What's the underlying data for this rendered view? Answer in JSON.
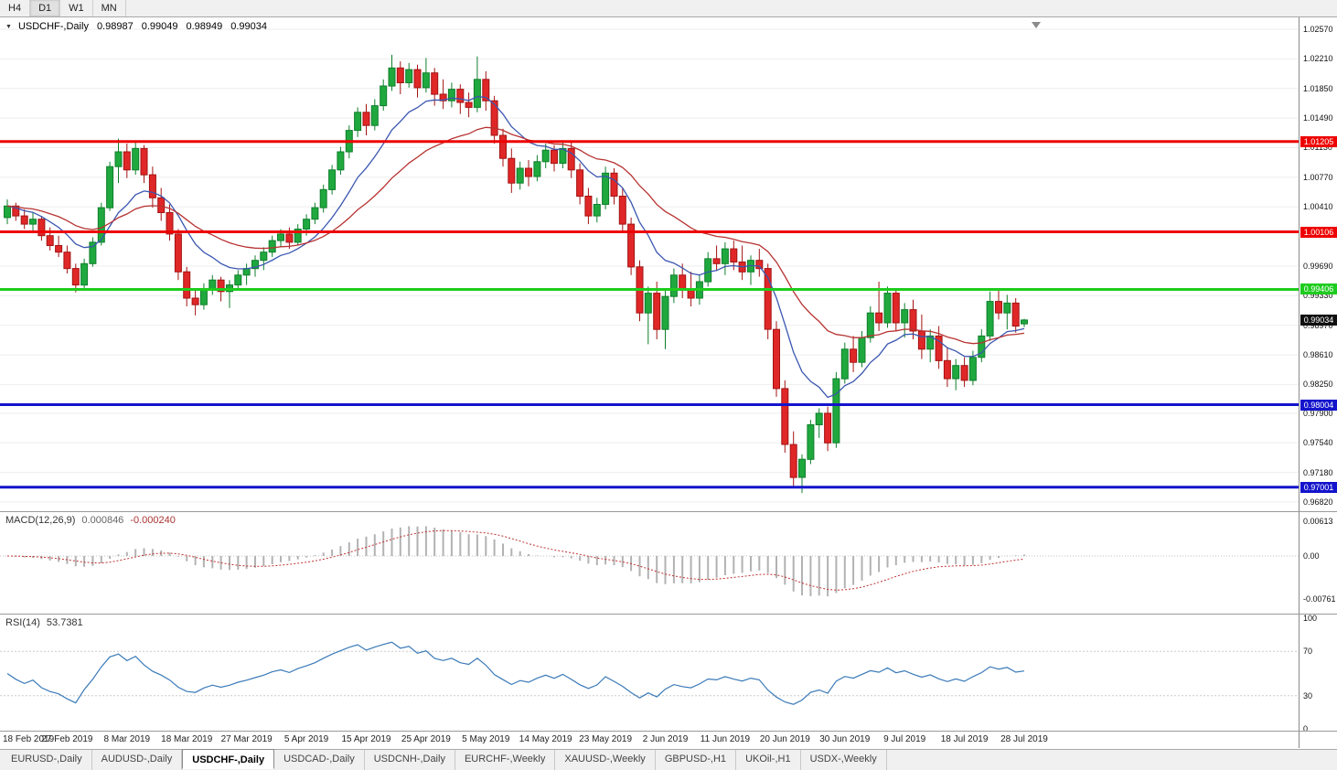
{
  "toolbar": {
    "timeframes": [
      {
        "label": "H4",
        "active": false
      },
      {
        "label": "D1",
        "active": true
      },
      {
        "label": "W1",
        "active": false
      },
      {
        "label": "MN",
        "active": false
      }
    ]
  },
  "chart": {
    "symbol_label": "USDCHF-,Daily",
    "ohlc": [
      "0.98987",
      "0.99049",
      "0.98949",
      "0.99034"
    ],
    "price_axis": {
      "ticks": [
        {
          "label": "1.02570",
          "value": 1.0257
        },
        {
          "label": "1.02210",
          "value": 1.0221
        },
        {
          "label": "1.01850",
          "value": 1.0185
        },
        {
          "label": "1.01490",
          "value": 1.0149
        },
        {
          "label": "1.01130",
          "value": 1.0113
        },
        {
          "label": "1.00770",
          "value": 1.0077
        },
        {
          "label": "1.00410",
          "value": 1.0041
        },
        {
          "label": "0.99690",
          "value": 0.9969
        },
        {
          "label": "0.99330",
          "value": 0.9933
        },
        {
          "label": "0.98970",
          "value": 0.9897
        },
        {
          "label": "0.98610",
          "value": 0.9861
        },
        {
          "label": "0.98250",
          "value": 0.9825
        },
        {
          "label": "0.97900",
          "value": 0.979
        },
        {
          "label": "0.97540",
          "value": 0.9754
        },
        {
          "label": "0.97180",
          "value": 0.9718
        },
        {
          "label": "0.96820",
          "value": 0.9682
        }
      ]
    },
    "hlines": [
      {
        "label": "1.01205",
        "value": 1.01205,
        "color": "#ee0000",
        "name": "resistance-line-1"
      },
      {
        "label": "1.00106",
        "value": 1.00106,
        "color": "#ee0000",
        "name": "resistance-line-2"
      },
      {
        "label": "0.99406",
        "value": 0.99406,
        "color": "#1ecc1e",
        "name": "pivot-line-green"
      },
      {
        "label": "0.98004",
        "value": 0.98004,
        "color": "#1414cc",
        "name": "support-line-1"
      },
      {
        "label": "0.97001",
        "value": 0.97001,
        "color": "#1414cc",
        "name": "support-line-2"
      }
    ],
    "current_price": {
      "label": "0.99034",
      "value": 0.99034,
      "color": "#101010"
    },
    "colors": {
      "up": "#1fa83e",
      "up_border": "#0f7f2b",
      "down": "#e02727",
      "down_border": "#a31313",
      "ma_fast": "#3a56b0",
      "ma_slow": "#b83232",
      "macd_hist": "#b2b2b2",
      "macd_signal": "#c03232",
      "rsi": "#3a7ab8",
      "grid": "#eeeeee"
    },
    "chart_data": {
      "type": "candlestick",
      "ylim": [
        0.9682,
        1.0257
      ],
      "candles": [
        [
          1.0028,
          1.005,
          1.002,
          1.0042
        ],
        [
          1.0042,
          1.0046,
          1.0024,
          1.003
        ],
        [
          1.003,
          1.0038,
          1.0014,
          1.002
        ],
        [
          1.002,
          1.0034,
          1.0012,
          1.0026
        ],
        [
          1.0026,
          1.003,
          1.0,
          1.0006
        ],
        [
          1.0006,
          1.0016,
          0.9988,
          0.9994
        ],
        [
          0.9994,
          1.0006,
          0.998,
          0.9986
        ],
        [
          0.9986,
          0.9994,
          0.996,
          0.9966
        ],
        [
          0.9966,
          0.9972,
          0.9937,
          0.9946
        ],
        [
          0.9946,
          0.9978,
          0.994,
          0.9972
        ],
        [
          0.9972,
          1.0004,
          0.9968,
          0.9998
        ],
        [
          0.9998,
          1.0046,
          0.9994,
          1.004
        ],
        [
          1.004,
          1.0096,
          1.0036,
          1.009
        ],
        [
          1.009,
          1.0124,
          1.007,
          1.0108
        ],
        [
          1.0108,
          1.0118,
          1.0076,
          1.0086
        ],
        [
          1.0086,
          1.0122,
          1.008,
          1.0112
        ],
        [
          1.0112,
          1.0116,
          1.007,
          1.008
        ],
        [
          1.008,
          1.009,
          1.004,
          1.0052
        ],
        [
          1.0052,
          1.0064,
          1.0024,
          1.0034
        ],
        [
          1.0034,
          1.0044,
          1.0,
          1.0008
        ],
        [
          1.0008,
          1.0014,
          0.9952,
          0.9962
        ],
        [
          0.9962,
          0.9968,
          0.992,
          0.993
        ],
        [
          0.993,
          0.9942,
          0.9909,
          0.9922
        ],
        [
          0.9922,
          0.9948,
          0.9916,
          0.994
        ],
        [
          0.994,
          0.9958,
          0.9934,
          0.9952
        ],
        [
          0.9952,
          0.9956,
          0.9926,
          0.9938
        ],
        [
          0.9938,
          0.9952,
          0.9918,
          0.9946
        ],
        [
          0.9946,
          0.9964,
          0.994,
          0.9958
        ],
        [
          0.9958,
          0.9972,
          0.9946,
          0.9966
        ],
        [
          0.9966,
          0.9982,
          0.9956,
          0.9976
        ],
        [
          0.9976,
          0.9992,
          0.9964,
          0.9986
        ],
        [
          0.9986,
          1.0006,
          0.998,
          1.0
        ],
        [
          1.0,
          1.0014,
          0.9992,
          1.0008
        ],
        [
          1.0008,
          1.0016,
          0.999,
          0.9998
        ],
        [
          0.9998,
          1.002,
          0.9994,
          1.0014
        ],
        [
          1.0014,
          1.0032,
          1.0006,
          1.0026
        ],
        [
          1.0026,
          1.0046,
          1.002,
          1.004
        ],
        [
          1.004,
          1.0068,
          1.0034,
          1.0062
        ],
        [
          1.0062,
          1.0092,
          1.0056,
          1.0086
        ],
        [
          1.0086,
          1.0114,
          1.008,
          1.0108
        ],
        [
          1.0108,
          1.014,
          1.01,
          1.0134
        ],
        [
          1.0134,
          1.0162,
          1.0126,
          1.0156
        ],
        [
          1.0156,
          1.0166,
          1.0128,
          1.014
        ],
        [
          1.014,
          1.0172,
          1.0134,
          1.0164
        ],
        [
          1.0164,
          1.0196,
          1.0158,
          1.0188
        ],
        [
          1.0188,
          1.0226,
          1.0182,
          1.021
        ],
        [
          1.021,
          1.0218,
          1.0178,
          1.0192
        ],
        [
          1.0192,
          1.0216,
          1.0186,
          1.0208
        ],
        [
          1.0208,
          1.0214,
          1.0174,
          1.0186
        ],
        [
          1.0186,
          1.0222,
          1.018,
          1.0204
        ],
        [
          1.0204,
          1.021,
          1.0164,
          1.0178
        ],
        [
          1.0178,
          1.0196,
          1.016,
          1.017
        ],
        [
          1.017,
          1.0192,
          1.0162,
          1.0184
        ],
        [
          1.0184,
          1.019,
          1.0154,
          1.0168
        ],
        [
          1.0168,
          1.018,
          1.015,
          1.0162
        ],
        [
          1.0162,
          1.0224,
          1.0156,
          1.0196
        ],
        [
          1.0196,
          1.0206,
          1.0158,
          1.017
        ],
        [
          1.017,
          1.0176,
          1.0118,
          1.0128
        ],
        [
          1.0128,
          1.0136,
          1.009,
          1.01
        ],
        [
          1.01,
          1.0112,
          1.0058,
          1.007
        ],
        [
          1.007,
          1.0096,
          1.0062,
          1.0088
        ],
        [
          1.0088,
          1.0098,
          1.0066,
          1.0078
        ],
        [
          1.0078,
          1.0104,
          1.0072,
          1.0096
        ],
        [
          1.0096,
          1.0118,
          1.0088,
          1.011
        ],
        [
          1.011,
          1.0116,
          1.0084,
          1.0094
        ],
        [
          1.0094,
          1.0122,
          1.0088,
          1.0112
        ],
        [
          1.0112,
          1.012,
          1.0076,
          1.0086
        ],
        [
          1.0086,
          1.0094,
          1.0044,
          1.0054
        ],
        [
          1.0054,
          1.0064,
          1.002,
          1.003
        ],
        [
          1.003,
          1.0052,
          1.0022,
          1.0044
        ],
        [
          1.0044,
          1.009,
          1.0038,
          1.0082
        ],
        [
          1.0082,
          1.0088,
          1.0044,
          1.0054
        ],
        [
          1.0054,
          1.0064,
          1.001,
          1.002
        ],
        [
          1.002,
          1.0028,
          0.9958,
          0.9968
        ],
        [
          0.9968,
          0.9976,
          0.9902,
          0.9912
        ],
        [
          0.9912,
          0.9944,
          0.9874,
          0.9936
        ],
        [
          0.9936,
          0.995,
          0.988,
          0.9892
        ],
        [
          0.9892,
          0.9942,
          0.9868,
          0.9932
        ],
        [
          0.9932,
          0.9966,
          0.9924,
          0.9958
        ],
        [
          0.9958,
          0.9972,
          0.993,
          0.994
        ],
        [
          0.994,
          0.9962,
          0.992,
          0.993
        ],
        [
          0.993,
          0.9958,
          0.9922,
          0.995
        ],
        [
          0.995,
          0.9986,
          0.9944,
          0.9978
        ],
        [
          0.9978,
          0.9994,
          0.9964,
          0.9972
        ],
        [
          0.9972,
          0.9998,
          0.9958,
          0.999
        ],
        [
          0.999,
          1.0,
          0.9964,
          0.9974
        ],
        [
          0.9974,
          0.9994,
          0.9952,
          0.9962
        ],
        [
          0.9962,
          0.9982,
          0.9946,
          0.9976
        ],
        [
          0.9976,
          0.999,
          0.9956,
          0.9966
        ],
        [
          0.9966,
          0.9972,
          0.988,
          0.9892
        ],
        [
          0.9892,
          0.9902,
          0.981,
          0.982
        ],
        [
          0.982,
          0.983,
          0.9742,
          0.9752
        ],
        [
          0.9752,
          0.9768,
          0.97,
          0.9712
        ],
        [
          0.9712,
          0.974,
          0.9693,
          0.9734
        ],
        [
          0.9734,
          0.9782,
          0.9728,
          0.9776
        ],
        [
          0.9776,
          0.9796,
          0.976,
          0.979
        ],
        [
          0.979,
          0.9798,
          0.9744,
          0.9754
        ],
        [
          0.9754,
          0.984,
          0.9748,
          0.9832
        ],
        [
          0.9832,
          0.9876,
          0.9826,
          0.9868
        ],
        [
          0.9868,
          0.9884,
          0.984,
          0.9852
        ],
        [
          0.9852,
          0.989,
          0.9846,
          0.9882
        ],
        [
          0.9882,
          0.992,
          0.9876,
          0.9912
        ],
        [
          0.9912,
          0.995,
          0.989,
          0.99
        ],
        [
          0.99,
          0.9944,
          0.9894,
          0.9936
        ],
        [
          0.9936,
          0.9942,
          0.989,
          0.99
        ],
        [
          0.99,
          0.9924,
          0.9882,
          0.9916
        ],
        [
          0.9916,
          0.9928,
          0.988,
          0.989
        ],
        [
          0.989,
          0.991,
          0.9856,
          0.9868
        ],
        [
          0.9868,
          0.9892,
          0.9852,
          0.9884
        ],
        [
          0.9884,
          0.9896,
          0.9844,
          0.9854
        ],
        [
          0.9854,
          0.987,
          0.9822,
          0.9832
        ],
        [
          0.9832,
          0.9856,
          0.9818,
          0.9848
        ],
        [
          0.9848,
          0.9858,
          0.9822,
          0.983
        ],
        [
          0.983,
          0.9866,
          0.9824,
          0.9858
        ],
        [
          0.9858,
          0.9892,
          0.9852,
          0.9884
        ],
        [
          0.9884,
          0.9938,
          0.9878,
          0.9926
        ],
        [
          0.9926,
          0.9942,
          0.9904,
          0.9912
        ],
        [
          0.9912,
          0.9934,
          0.9892,
          0.9924
        ],
        [
          0.9924,
          0.993,
          0.9888,
          0.9896
        ],
        [
          0.98987,
          0.99049,
          0.98949,
          0.99034
        ]
      ]
    }
  },
  "macd": {
    "title": "MACD(12,26,9)",
    "value_main": "0.000846",
    "value_signal": "-0.000240",
    "axis": [
      {
        "label": "0.00613",
        "value": 0.00613
      },
      {
        "label": "0.00",
        "value": 0
      },
      {
        "label": "-0.00761",
        "value": -0.00761
      }
    ]
  },
  "rsi": {
    "title": "RSI(14)",
    "value": "53.7381",
    "axis": [
      {
        "label": "100",
        "value": 100
      },
      {
        "label": "70",
        "value": 70
      },
      {
        "label": "30",
        "value": 30
      },
      {
        "label": "0",
        "value": 0
      }
    ],
    "levels": [
      70,
      30
    ]
  },
  "date_axis": {
    "labels": [
      {
        "text": "18 Feb 2019",
        "i": 0
      },
      {
        "text": "27 Feb 2019",
        "i": 7
      },
      {
        "text": "8 Mar 2019",
        "i": 14
      },
      {
        "text": "18 Mar 2019",
        "i": 21
      },
      {
        "text": "27 Mar 2019",
        "i": 28
      },
      {
        "text": "5 Apr 2019",
        "i": 35
      },
      {
        "text": "15 Apr 2019",
        "i": 42
      },
      {
        "text": "25 Apr 2019",
        "i": 49
      },
      {
        "text": "5 May 2019",
        "i": 56
      },
      {
        "text": "14 May 2019",
        "i": 63
      },
      {
        "text": "23 May 2019",
        "i": 70
      },
      {
        "text": "2 Jun 2019",
        "i": 77
      },
      {
        "text": "11 Jun 2019",
        "i": 84
      },
      {
        "text": "20 Jun 2019",
        "i": 91
      },
      {
        "text": "30 Jun 2019",
        "i": 98
      },
      {
        "text": "9 Jul 2019",
        "i": 105
      },
      {
        "text": "18 Jul 2019",
        "i": 112
      },
      {
        "text": "28 Jul 2019",
        "i": 119
      }
    ]
  },
  "tabs": [
    {
      "label": "EURUSD-,Daily",
      "active": false
    },
    {
      "label": "AUDUSD-,Daily",
      "active": false
    },
    {
      "label": "USDCHF-,Daily",
      "active": true
    },
    {
      "label": "USDCAD-,Daily",
      "active": false
    },
    {
      "label": "USDCNH-,Daily",
      "active": false
    },
    {
      "label": "EURCHF-,Weekly",
      "active": false
    },
    {
      "label": "XAUUSD-,Weekly",
      "active": false
    },
    {
      "label": "GBPUSD-,H1",
      "active": false
    },
    {
      "label": "UKOil-,H1",
      "active": false
    },
    {
      "label": "USDX-,Weekly",
      "active": false
    }
  ]
}
